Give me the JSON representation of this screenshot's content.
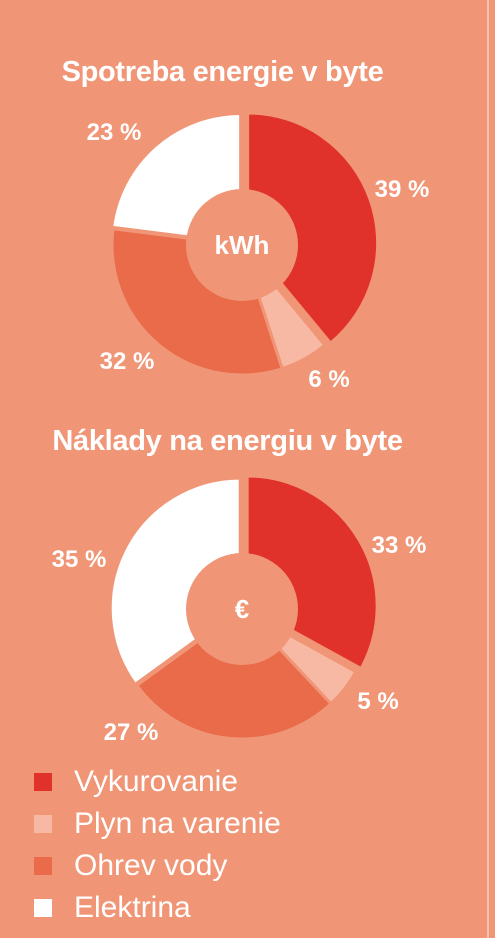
{
  "colors": {
    "background": "#f09677",
    "vykurovanie": "#e0312b",
    "plyn": "#f7b8a4",
    "ohrev": "#ea6b4a",
    "elektrina": "#ffffff",
    "hole": "#f09677",
    "separator": "#f09677"
  },
  "legend": [
    {
      "label": "Vykurovanie",
      "color": "#e0312b"
    },
    {
      "label": "Plyn na varenie",
      "color": "#f7b8a4"
    },
    {
      "label": "Ohrev vody",
      "color": "#ea6b4a"
    },
    {
      "label": "Elektrina",
      "color": "#ffffff"
    }
  ],
  "chart_data": [
    {
      "type": "pie",
      "title": "Spotreba energie v byte",
      "center_label": "kWh",
      "categories": [
        "Vykurovanie",
        "Plyn na varenie",
        "Ohrev vody",
        "Elektrina"
      ],
      "values": [
        39,
        6,
        32,
        23
      ],
      "value_labels": [
        "39 %",
        "6 %",
        "32 %",
        "23 %"
      ]
    },
    {
      "type": "pie",
      "title": "Náklady na energiu v byte",
      "center_label": "€",
      "categories": [
        "Vykurovanie",
        "Plyn na varenie",
        "Ohrev vody",
        "Elektrina"
      ],
      "values": [
        33,
        5,
        27,
        35
      ],
      "value_labels": [
        "33 %",
        "5 %",
        "27 %",
        "35 %"
      ]
    }
  ]
}
